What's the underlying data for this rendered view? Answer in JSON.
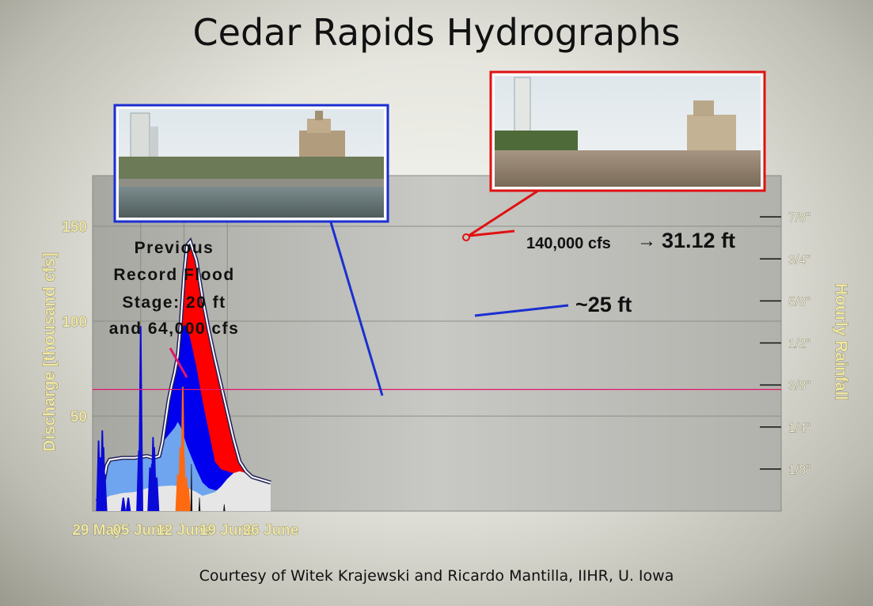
{
  "title": "Cedar Rapids Hydrographs",
  "credit": "Courtesy of Witek Krajewski and Ricardo Mantilla, IIHR, U. Iowa",
  "colors": {
    "blue_photo_frame": "#1a2fd0",
    "red_photo_frame": "#e01010",
    "flood_red": "#ff0000",
    "flood_blue": "#0000ee",
    "base_lightblue": "#6fa4ee",
    "rain_blue": "#0a0ad8",
    "rain_orange": "#ff6a10",
    "threshold_line": "#e0186a"
  },
  "annotations": {
    "previous_record_lines": [
      "Previous",
      "Record Flood",
      "Stage: 20 ft",
      "and 64,000 cfs"
    ],
    "peak_value": "140,000 cfs",
    "peak_arrow": "→",
    "peak_stage": "31.12 ft",
    "mid_stage": "~25 ft"
  },
  "chart_data": {
    "type": "area",
    "xlabel": "",
    "ylabel": "Discharge [thousand cfs]",
    "y2label": "Hourly Rainfall",
    "x_ticks": [
      "29 May",
      "05 June",
      "12 June",
      "19 June",
      "26 June"
    ],
    "y_ticks": [
      50,
      100,
      150
    ],
    "y2_ticks": [
      "1/8\"",
      "1/4\"",
      "3/8\"",
      "1/2\"",
      "5/8\"",
      "3/4\"",
      "7/8\""
    ],
    "xlim": [
      0,
      28
    ],
    "ylim": [
      0,
      170
    ],
    "y2lim": [
      0,
      1
    ],
    "grid": true,
    "threshold": 64,
    "series": [
      {
        "name": "",
        "color": "#ff0000",
        "x": [
          0,
          0.5,
          1,
          1.5,
          2,
          3,
          4,
          5,
          6,
          7,
          8,
          9,
          10,
          10.5,
          11,
          11.5,
          12,
          12.5,
          13,
          13.5,
          14,
          14.5,
          15,
          16,
          17,
          18,
          19,
          20,
          21,
          22,
          23,
          24,
          25,
          26,
          27,
          28
        ],
        "values": [
          5,
          8,
          15,
          24,
          27,
          27.5,
          28,
          28,
          28,
          28.5,
          29,
          28,
          29,
          36,
          47,
          58,
          66,
          73,
          82,
          100,
          124,
          140,
          142,
          132,
          112,
          95,
          80,
          66,
          52,
          38,
          26,
          21,
          18,
          17,
          16,
          15
        ]
      },
      {
        "name": "",
        "color": "#0000ee",
        "x": [
          0,
          0.5,
          1,
          1.5,
          2,
          3,
          4,
          5,
          6,
          7,
          8,
          9,
          10,
          10.5,
          11,
          11.5,
          12,
          12.5,
          13,
          13.5,
          14,
          14.5,
          15,
          16,
          17,
          18,
          19,
          20,
          21,
          22,
          23,
          24,
          25,
          26,
          27,
          28
        ],
        "values": [
          5,
          8,
          15,
          24,
          27,
          27.5,
          28,
          28,
          28,
          28.5,
          29,
          28,
          29,
          36,
          47,
          58,
          66,
          73,
          82,
          94,
          98,
          97,
          91,
          76,
          58,
          42,
          26,
          22,
          21,
          20,
          19,
          18,
          17,
          16,
          15,
          15
        ]
      },
      {
        "name": "",
        "color": "#6fa4ee",
        "x": [
          0,
          0.5,
          1,
          1.5,
          2,
          3,
          4,
          5,
          6,
          7,
          8,
          9,
          10,
          10.5,
          11,
          11.5,
          12,
          12.5,
          13,
          13.5,
          14,
          14.5,
          15,
          16,
          17,
          18,
          19,
          20,
          21,
          22,
          23,
          24,
          25,
          26,
          27,
          28
        ],
        "values": [
          5,
          8,
          15,
          24,
          27,
          27.5,
          28,
          28,
          28,
          28.5,
          29,
          28,
          29,
          36,
          38,
          40,
          42,
          44,
          47,
          44,
          39,
          34,
          30,
          22,
          15,
          12,
          11,
          11,
          11,
          11,
          11,
          11,
          11,
          11,
          11,
          11
        ]
      },
      {
        "name": "",
        "color": "#e6e6e6",
        "x": [
          0,
          2,
          4,
          6,
          7,
          8,
          10,
          12,
          14,
          16,
          17,
          18,
          19,
          20,
          21,
          22,
          23,
          24,
          26,
          28
        ],
        "values": [
          5,
          8,
          9.5,
          10,
          11,
          12,
          13,
          13.5,
          13,
          10,
          8,
          9,
          10,
          13,
          17,
          20,
          21,
          20,
          18,
          15
        ]
      }
    ],
    "rainfall": {
      "blue": {
        "x": [
          0.2,
          0.5,
          0.8,
          1.0,
          1.2,
          4.2,
          5.0,
          6.7,
          7.0,
          8.5,
          8.8,
          9.0,
          9.2,
          9.6
        ],
        "values": [
          0.21,
          0.16,
          0.24,
          0.19,
          0.11,
          0.04,
          0.04,
          0.18,
          0.55,
          0.13,
          0.14,
          0.22,
          0.19,
          0.1
        ]
      },
      "orange": {
        "x": [
          13.0,
          13.4,
          13.8,
          14.0,
          14.4,
          14.7
        ],
        "values": [
          0.11,
          0.19,
          0.37,
          0.16,
          0.1,
          0.07
        ]
      },
      "black": {
        "x": [
          15.2,
          16.5,
          20.5
        ],
        "values": [
          0.14,
          0.04,
          0.02
        ]
      }
    }
  }
}
